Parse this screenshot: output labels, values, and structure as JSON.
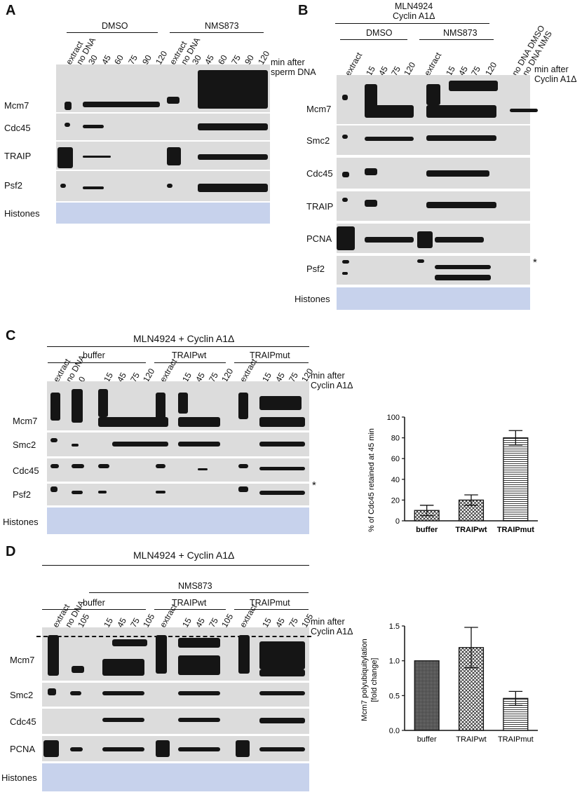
{
  "panelA": {
    "letter": "A",
    "groups": [
      "DMSO",
      "NMS873"
    ],
    "lanes_dmso": [
      "extract",
      "no DNA",
      "30",
      "45",
      "60",
      "75",
      "90",
      "120"
    ],
    "lanes_nms": [
      "extract",
      "no DNA",
      "30",
      "45",
      "60",
      "75",
      "90",
      "120"
    ],
    "time_note": [
      "min after",
      "sperm DNA"
    ],
    "rows": [
      "Mcm7",
      "Cdc45",
      "TRAIP",
      "Psf2",
      "Histones"
    ]
  },
  "panelB": {
    "letter": "B",
    "header": [
      "MLN4924",
      "Cyclin A1Δ"
    ],
    "groups": [
      "DMSO",
      "NMS873"
    ],
    "lanes_dmso": [
      "extract",
      "15",
      "45",
      "75",
      "120"
    ],
    "lanes_nms": [
      "extract",
      "15",
      "45",
      "75",
      "120"
    ],
    "lanes_extra": [
      "no DNA DMSO",
      "no DNA NMS"
    ],
    "time_note": [
      "min after",
      "Cyclin A1Δ"
    ],
    "rows": [
      "Mcm7",
      "Smc2",
      "Cdc45",
      "TRAIP",
      "PCNA",
      "Psf2",
      "Histones"
    ],
    "asterisk": "*"
  },
  "panelC": {
    "letter": "C",
    "header": "MLN4924 + Cyclin A1Δ",
    "groups": [
      "buffer",
      "TRAIPwt",
      "TRAIPmut"
    ],
    "lanes_buffer": [
      "extract",
      "no DNA",
      "0",
      "15",
      "45",
      "75",
      "120"
    ],
    "lanes_wt": [
      "extract",
      "15",
      "45",
      "75",
      "120"
    ],
    "lanes_mut": [
      "extract",
      "15",
      "45",
      "75",
      "120"
    ],
    "time_note": [
      "min after",
      "Cyclin A1Δ"
    ],
    "rows": [
      "Mcm7",
      "Smc2",
      "Cdc45",
      "Psf2",
      "Histones"
    ],
    "asterisk": "*"
  },
  "panelD": {
    "letter": "D",
    "header": "MLN4924 + Cyclin A1Δ",
    "subheader": "NMS873",
    "groups": [
      "buffer",
      "TRAIPwt",
      "TRAIPmut"
    ],
    "lanes_buffer": [
      "extract",
      "no DNA",
      "105",
      "15",
      "45",
      "75",
      "105"
    ],
    "lanes_wt": [
      "extract",
      "15",
      "45",
      "75",
      "105"
    ],
    "lanes_mut": [
      "extract",
      "15",
      "45",
      "75",
      "105"
    ],
    "time_note": [
      "min after",
      "Cyclin A1Δ"
    ],
    "rows": [
      "Mcm7",
      "Smc2",
      "Cdc45",
      "PCNA",
      "Histones"
    ]
  },
  "chart_data": [
    {
      "type": "bar",
      "categories": [
        "buffer",
        "TRAIPwt",
        "TRAIPmut"
      ],
      "values": [
        10,
        20,
        80
      ],
      "errors": [
        5,
        5,
        7
      ],
      "ylabel": "% of Cdc45 retained at 45 min",
      "ylim": [
        0,
        100
      ],
      "yticks": [
        "0",
        "20",
        "40",
        "60",
        "80",
        "100"
      ],
      "patterns": [
        "crosshatch",
        "crosshatch",
        "horizontal"
      ]
    },
    {
      "type": "bar",
      "categories": [
        "buffer",
        "TRAIPwt",
        "TRAIPmut"
      ],
      "values": [
        1.0,
        1.19,
        0.46
      ],
      "errors": [
        0,
        0.29,
        0.1
      ],
      "ylabel": "Mcm7 polyubiquitylation [fold change]",
      "ylim": [
        0,
        1.5
      ],
      "yticks": [
        "0.0",
        "0.5",
        "1.0",
        "1.5"
      ],
      "patterns": [
        "dots",
        "crosshatch",
        "horizontal"
      ]
    }
  ]
}
